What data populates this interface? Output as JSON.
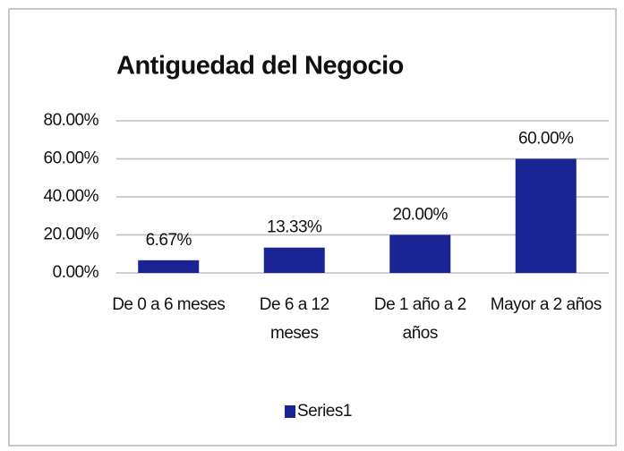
{
  "chart_data": {
    "type": "bar",
    "title": "Antiguedad del Negocio",
    "categories": [
      "De 0 a 6 meses",
      "De 6 a 12 meses",
      "De 1 año a 2 años",
      "Mayor a 2 años"
    ],
    "series": [
      {
        "name": "Series1",
        "color": "#1a2494",
        "values": [
          6.67,
          13.33,
          20,
          60
        ],
        "value_labels": [
          "6.67%",
          "13.33%",
          "20.00%",
          "60.00%"
        ]
      }
    ],
    "ylim": [
      0,
      80
    ],
    "yticks": [
      {
        "value": 0,
        "label": "0.00%"
      },
      {
        "value": 20,
        "label": "20.00%"
      },
      {
        "value": 40,
        "label": "40.00%"
      },
      {
        "value": 60,
        "label": "60.00%"
      },
      {
        "value": 80,
        "label": "80.00%"
      }
    ],
    "grid": true,
    "legend": "bottom"
  }
}
